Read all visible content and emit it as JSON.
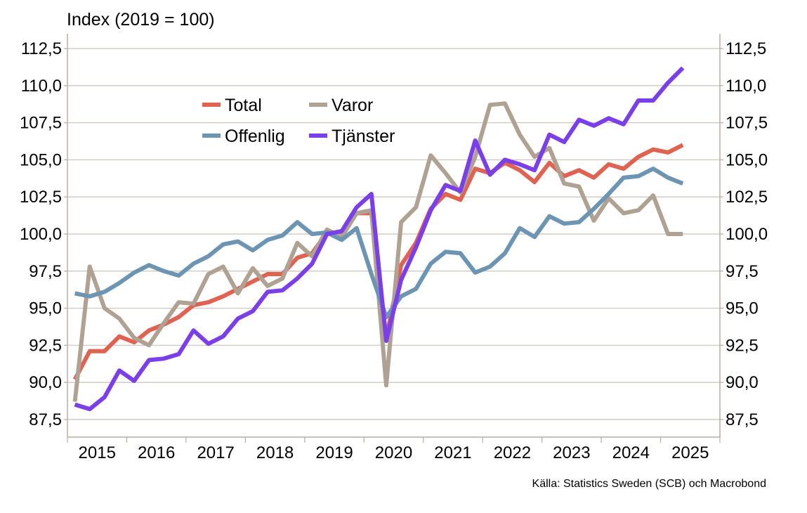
{
  "unit_label": "Index (2019 = 100)",
  "source": "Källa: Statistics Sweden (SCB)  och Macrobond",
  "chart_data": {
    "type": "line",
    "y_ticks": [
      "87,5",
      "90,0",
      "92,5",
      "95,0",
      "97,5",
      "100,0",
      "102,5",
      "105,0",
      "107,5",
      "110,0",
      "112,5"
    ],
    "ylim": [
      86.5,
      113.5
    ],
    "grid": true,
    "legend_position": "top-left",
    "x_ticks": [
      "2015",
      "2016",
      "2017",
      "2018",
      "2019",
      "2020",
      "2021",
      "2022",
      "2023",
      "2024",
      "2025"
    ],
    "x_start": "2015Q1",
    "x": [
      "2015Q1",
      "2015Q2",
      "2015Q3",
      "2015Q4",
      "2016Q1",
      "2016Q2",
      "2016Q3",
      "2016Q4",
      "2017Q1",
      "2017Q2",
      "2017Q3",
      "2017Q4",
      "2018Q1",
      "2018Q2",
      "2018Q3",
      "2018Q4",
      "2019Q1",
      "2019Q2",
      "2019Q3",
      "2019Q4",
      "2020Q1",
      "2020Q2",
      "2020Q3",
      "2020Q4",
      "2021Q1",
      "2021Q2",
      "2021Q3",
      "2021Q4",
      "2022Q1",
      "2022Q2",
      "2022Q3",
      "2022Q4",
      "2023Q1",
      "2023Q2",
      "2023Q3",
      "2023Q4",
      "2024Q1",
      "2024Q2",
      "2024Q3",
      "2024Q4",
      "2025Q1",
      "2025Q2"
    ],
    "series": [
      {
        "name": "Total",
        "color": "#E06352",
        "values": [
          90.2,
          92.1,
          92.1,
          93.1,
          92.7,
          93.5,
          93.9,
          94.4,
          95.2,
          95.4,
          95.8,
          96.3,
          96.8,
          97.3,
          97.3,
          98.4,
          98.7,
          100.1,
          100.0,
          101.4,
          101.4,
          93.0,
          97.9,
          99.4,
          101.7,
          102.7,
          102.3,
          104.4,
          104.1,
          104.8,
          104.3,
          103.5,
          104.8,
          103.9,
          104.3,
          103.8,
          104.7,
          104.4,
          105.2,
          105.7,
          105.5,
          106.0
        ]
      },
      {
        "name": "Varor",
        "color": "#B0A293",
        "values": [
          88.7,
          97.8,
          95.0,
          94.3,
          93.0,
          92.5,
          94.0,
          95.4,
          95.3,
          97.3,
          97.8,
          96.0,
          97.7,
          96.5,
          97.0,
          99.4,
          98.5,
          100.3,
          99.8,
          101.4,
          101.6,
          89.8,
          100.8,
          101.8,
          105.3,
          104.1,
          102.8,
          105.2,
          108.7,
          108.8,
          106.7,
          105.2,
          105.8,
          103.4,
          103.2,
          100.9,
          102.4,
          101.4,
          101.6,
          102.6,
          100.0,
          100.0
        ]
      },
      {
        "name": "Offenlig",
        "color": "#6B95B2",
        "values": [
          96.0,
          95.8,
          96.1,
          96.7,
          97.4,
          97.9,
          97.5,
          97.2,
          98.0,
          98.5,
          99.3,
          99.5,
          98.9,
          99.6,
          99.9,
          100.8,
          100.0,
          100.1,
          99.6,
          100.4,
          97.3,
          94.4,
          95.8,
          96.3,
          98.0,
          98.8,
          98.7,
          97.4,
          97.8,
          98.7,
          100.4,
          99.8,
          101.2,
          100.7,
          100.8,
          101.7,
          102.7,
          103.8,
          103.9,
          104.4,
          103.8,
          103.4
        ]
      },
      {
        "name": "Tjänster",
        "color": "#7A3FE8",
        "values": [
          88.5,
          88.2,
          89.0,
          90.8,
          90.1,
          91.5,
          91.6,
          91.9,
          93.5,
          92.6,
          93.1,
          94.3,
          94.8,
          96.1,
          96.2,
          97.0,
          98.0,
          100.0,
          100.2,
          101.8,
          102.7,
          92.8,
          96.9,
          99.1,
          101.6,
          103.3,
          102.9,
          106.3,
          104.0,
          105.0,
          104.7,
          104.3,
          106.7,
          106.2,
          107.7,
          107.3,
          107.8,
          107.4,
          109.0,
          109.0,
          110.2,
          111.2
        ]
      }
    ]
  }
}
